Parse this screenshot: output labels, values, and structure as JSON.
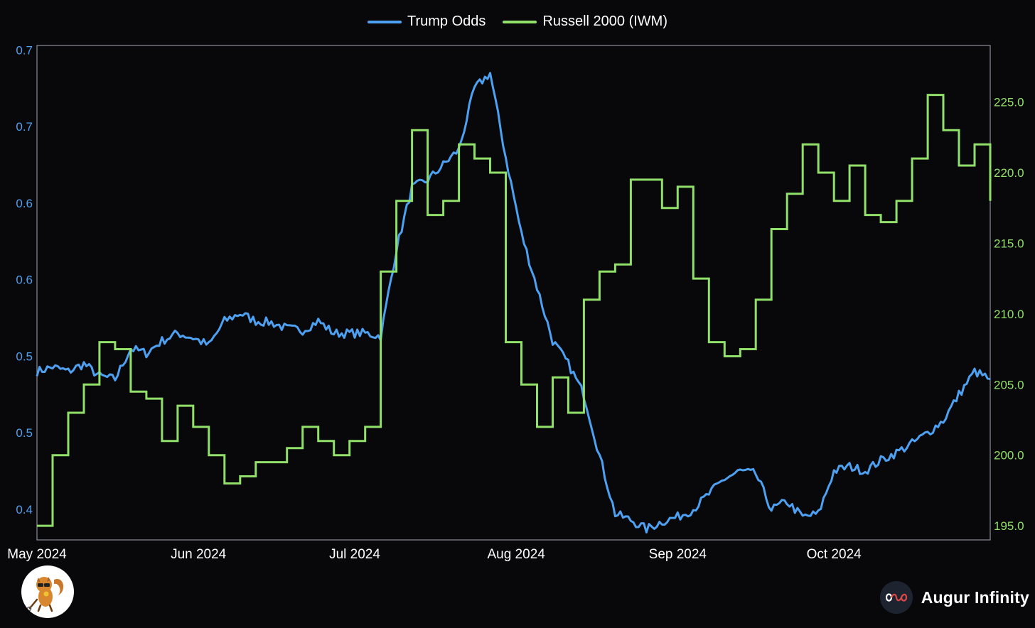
{
  "legend": [
    {
      "label": "Trump Odds",
      "color": "#4ea0f0"
    },
    {
      "label": "Russell 2000 (IWM)",
      "color": "#90e06a"
    }
  ],
  "brand": {
    "name": "Augur Infinity",
    "icon": "infinity-logo-icon"
  },
  "logo": {
    "icon": "squirrel-mascot-icon"
  },
  "chart_data": {
    "type": "line",
    "title": "",
    "grid": false,
    "legend_position": "top-center",
    "x": [
      "2024-05-01",
      "2024-05-04",
      "2024-05-07",
      "2024-05-10",
      "2024-05-13",
      "2024-05-16",
      "2024-05-19",
      "2024-05-22",
      "2024-05-25",
      "2024-05-28",
      "2024-05-31",
      "2024-06-03",
      "2024-06-06",
      "2024-06-09",
      "2024-06-12",
      "2024-06-15",
      "2024-06-18",
      "2024-06-21",
      "2024-06-24",
      "2024-06-27",
      "2024-06-30",
      "2024-07-03",
      "2024-07-06",
      "2024-07-09",
      "2024-07-12",
      "2024-07-15",
      "2024-07-18",
      "2024-07-21",
      "2024-07-24",
      "2024-07-27",
      "2024-07-30",
      "2024-08-02",
      "2024-08-05",
      "2024-08-08",
      "2024-08-11",
      "2024-08-14",
      "2024-08-17",
      "2024-08-20",
      "2024-08-23",
      "2024-08-26",
      "2024-08-29",
      "2024-09-01",
      "2024-09-04",
      "2024-09-07",
      "2024-09-10",
      "2024-09-13",
      "2024-09-16",
      "2024-09-19",
      "2024-09-22",
      "2024-09-25",
      "2024-09-28",
      "2024-10-01",
      "2024-10-04",
      "2024-10-07",
      "2024-10-10",
      "2024-10-13",
      "2024-10-16",
      "2024-10-19",
      "2024-10-22",
      "2024-10-25",
      "2024-10-28",
      "2024-10-31"
    ],
    "x_ticks": [
      "May 2024",
      "Jun 2024",
      "Jul 2024",
      "Aug 2024",
      "Sep 2024",
      "Oct 2024"
    ],
    "x_tick_dates": [
      "2024-05-01",
      "2024-06-01",
      "2024-07-01",
      "2024-08-01",
      "2024-09-01",
      "2024-10-01"
    ],
    "x_range": [
      "2024-05-01",
      "2024-10-31"
    ],
    "y_left": {
      "range": [
        0.405,
        0.728
      ],
      "tick_values": [
        0.425,
        0.475,
        0.525,
        0.575,
        0.625,
        0.675,
        0.725
      ],
      "tick_labels": [
        "0.4",
        "0.5",
        "0.5",
        "0.6",
        "0.6",
        "0.7",
        "0.7"
      ],
      "color": "#4ea0f0"
    },
    "y_right": {
      "range": [
        194.0,
        229.0
      ],
      "tick_values": [
        195,
        200,
        205,
        210,
        215,
        220,
        225
      ],
      "tick_labels": [
        "195.0",
        "200.0",
        "205.0",
        "210.0",
        "215.0",
        "220.0",
        "225.0"
      ],
      "color": "#90e06a"
    },
    "series": [
      {
        "name": "Trump Odds",
        "axis": "left",
        "color": "#4ea0f0",
        "values": [
          0.515,
          0.518,
          0.515,
          0.52,
          0.512,
          0.51,
          0.53,
          0.527,
          0.535,
          0.54,
          0.537,
          0.532,
          0.548,
          0.553,
          0.548,
          0.547,
          0.543,
          0.542,
          0.548,
          0.54,
          0.54,
          0.54,
          0.538,
          0.595,
          0.635,
          0.64,
          0.65,
          0.66,
          0.7,
          0.71,
          0.655,
          0.605,
          0.57,
          0.535,
          0.52,
          0.5,
          0.46,
          0.422,
          0.418,
          0.412,
          0.417,
          0.42,
          0.425,
          0.435,
          0.445,
          0.45,
          0.448,
          0.425,
          0.43,
          0.42,
          0.422,
          0.45,
          0.453,
          0.45,
          0.457,
          0.462,
          0.468,
          0.475,
          0.483,
          0.5,
          0.515,
          0.51
        ]
      },
      {
        "name": "Russell 2000 (IWM)",
        "axis": "right",
        "color": "#90e06a",
        "values": [
          195.0,
          200.0,
          203.0,
          205.0,
          208.0,
          207.5,
          204.5,
          204.0,
          201.0,
          203.5,
          202.0,
          200.0,
          198.0,
          198.5,
          199.5,
          199.5,
          200.5,
          202.0,
          201.0,
          200.0,
          201.0,
          202.0,
          213.0,
          218.0,
          223.0,
          217.0,
          218.0,
          222.0,
          221.0,
          220.0,
          208.0,
          205.0,
          202.0,
          205.5,
          203.0,
          211.0,
          213.0,
          213.5,
          219.5,
          219.5,
          217.5,
          219.0,
          212.5,
          208.0,
          207.0,
          207.5,
          211.0,
          216.0,
          218.5,
          222.0,
          220.0,
          218.0,
          220.5,
          217.0,
          216.5,
          218.0,
          221.0,
          225.5,
          223.0,
          220.5,
          222.0,
          218.0
        ]
      }
    ]
  }
}
